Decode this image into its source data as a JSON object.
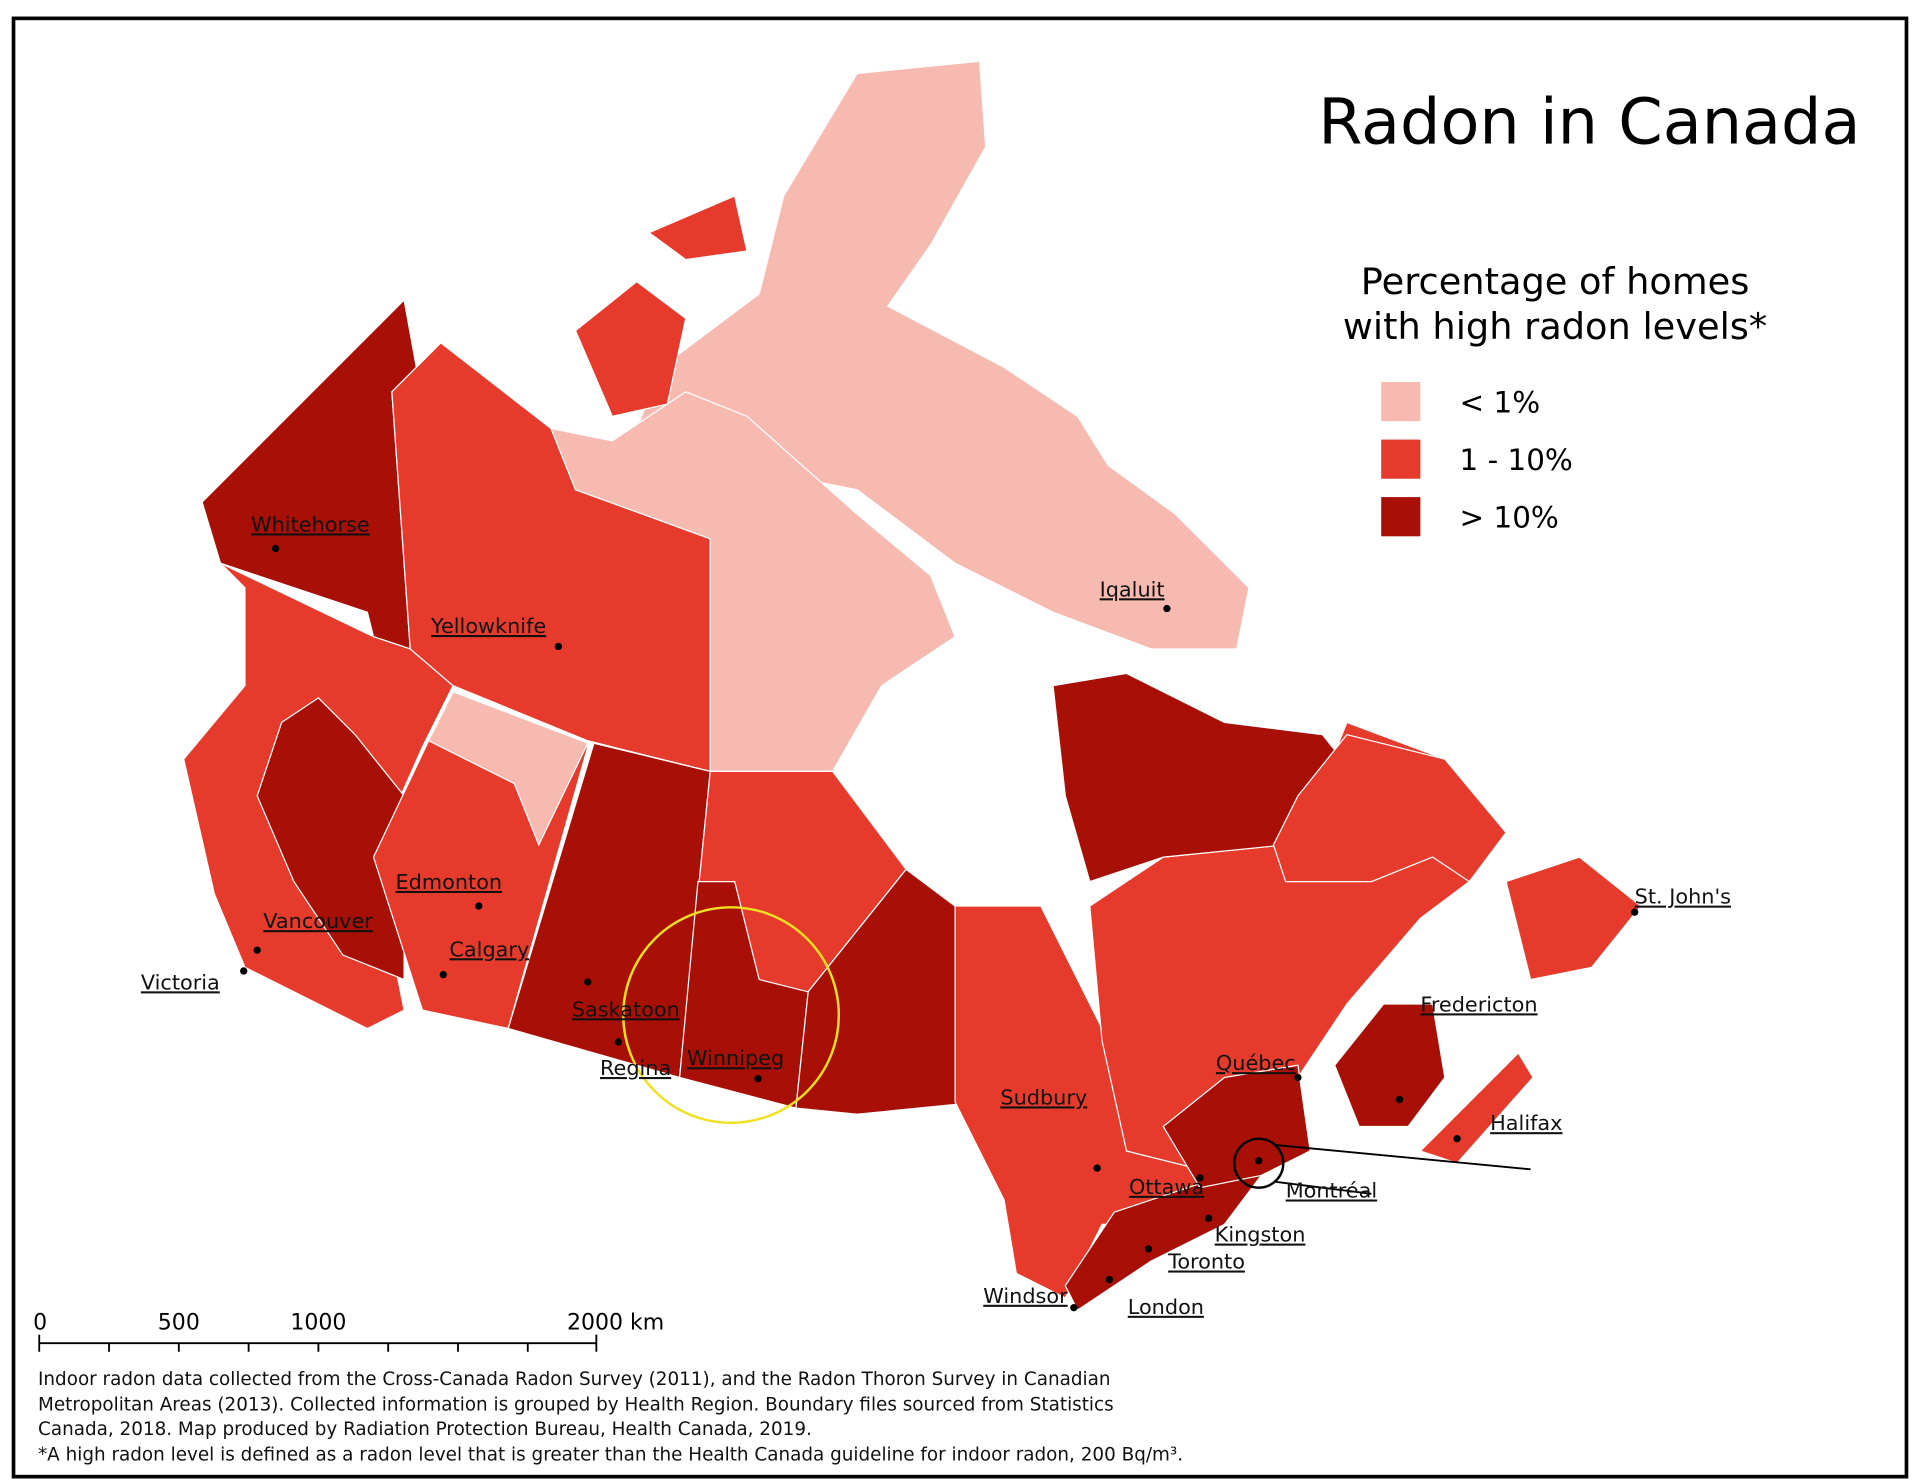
{
  "header": {
    "title": "Radon in Canada"
  },
  "legend": {
    "title_lines": [
      "Percentage of homes",
      "with high radon levels*"
    ],
    "items": [
      {
        "label": "< 1%",
        "color": "#f7bab1"
      },
      {
        "label": "1 - 10%",
        "color": "#e63b2c"
      },
      {
        "label": "> 10%",
        "color": "#a80f06"
      }
    ]
  },
  "cities": [
    "Whitehorse",
    "Yellowknife",
    "Iqaluit",
    "Edmonton",
    "Vancouver",
    "Calgary",
    "Victoria",
    "Saskatoon",
    "Regina",
    "Winnipeg",
    "Sudbury",
    "Ottawa",
    "Québec",
    "Montréal",
    "Kingston",
    "Toronto",
    "London",
    "Windsor",
    "Halifax",
    "Fredericton",
    "St. John's"
  ],
  "scale_bar": {
    "labels": [
      "0",
      "500",
      "1000",
      "2000 km"
    ]
  },
  "footnote": {
    "lines": [
      "Indoor radon data collected from the Cross-Canada Radon Survey (2011), and the Radon Thoron Survey in Canadian",
      "Metropolitan Areas (2013). Collected information is grouped by Health Region. Boundary files sourced from Statistics",
      "Canada, 2018. Map produced by Radiation Protection Bureau, Health Canada, 2019.",
      "*A high radon level is defined as a radon level that is greater than the Health Canada guideline for indoor radon, 200 Bq/m³."
    ]
  }
}
